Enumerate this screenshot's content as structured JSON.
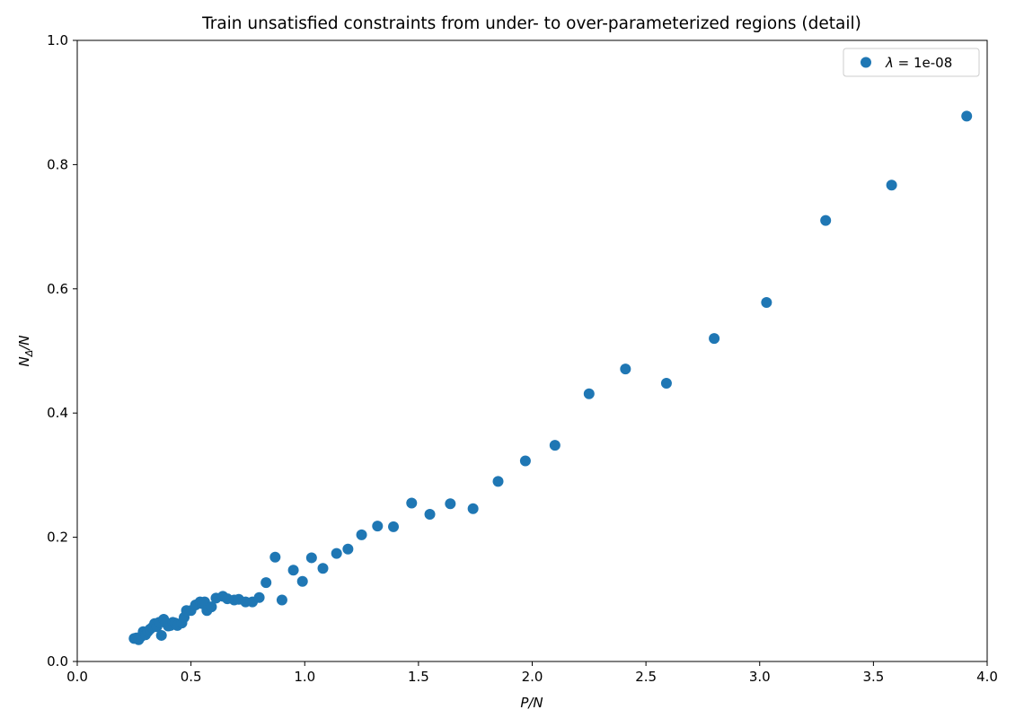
{
  "chart_data": {
    "type": "scatter",
    "title": "Train unsatisfied constraints from under- to over-parameterized regions (detail)",
    "xlabel": "P/N",
    "ylabel": "NΔ/N",
    "ylabel_parts": {
      "main": "N",
      "sub": "Δ",
      "tail": "/N"
    },
    "xlim": [
      0.0,
      4.0
    ],
    "ylim": [
      0.0,
      1.0
    ],
    "xticks": [
      0.0,
      0.5,
      1.0,
      1.5,
      2.0,
      2.5,
      3.0,
      3.5,
      4.0
    ],
    "yticks": [
      0.0,
      0.2,
      0.4,
      0.6,
      0.8,
      1.0
    ],
    "xtick_labels": [
      "0.0",
      "0.5",
      "1.0",
      "1.5",
      "2.0",
      "2.5",
      "3.0",
      "3.5",
      "4.0"
    ],
    "ytick_labels": [
      "0.0",
      "0.2",
      "0.4",
      "0.6",
      "0.8",
      "1.0"
    ],
    "grid": false,
    "legend_position": "top-right",
    "series": [
      {
        "name": "λ = 1e-08",
        "legend_parts": {
          "symbol": "λ",
          "rest": " = 1e-08"
        },
        "color": "#1f77b4",
        "points": [
          [
            0.25,
            0.037
          ],
          [
            0.26,
            0.038
          ],
          [
            0.27,
            0.035
          ],
          [
            0.28,
            0.04
          ],
          [
            0.29,
            0.048
          ],
          [
            0.3,
            0.043
          ],
          [
            0.31,
            0.048
          ],
          [
            0.32,
            0.052
          ],
          [
            0.33,
            0.055
          ],
          [
            0.34,
            0.061
          ],
          [
            0.35,
            0.056
          ],
          [
            0.36,
            0.063
          ],
          [
            0.37,
            0.042
          ],
          [
            0.38,
            0.068
          ],
          [
            0.39,
            0.062
          ],
          [
            0.4,
            0.057
          ],
          [
            0.41,
            0.058
          ],
          [
            0.42,
            0.063
          ],
          [
            0.43,
            0.062
          ],
          [
            0.44,
            0.058
          ],
          [
            0.46,
            0.062
          ],
          [
            0.47,
            0.071
          ],
          [
            0.48,
            0.082
          ],
          [
            0.5,
            0.082
          ],
          [
            0.52,
            0.091
          ],
          [
            0.54,
            0.096
          ],
          [
            0.55,
            0.093
          ],
          [
            0.56,
            0.096
          ],
          [
            0.57,
            0.082
          ],
          [
            0.59,
            0.088
          ],
          [
            0.61,
            0.102
          ],
          [
            0.64,
            0.105
          ],
          [
            0.66,
            0.101
          ],
          [
            0.69,
            0.099
          ],
          [
            0.71,
            0.1
          ],
          [
            0.74,
            0.096
          ],
          [
            0.77,
            0.096
          ],
          [
            0.8,
            0.103
          ],
          [
            0.83,
            0.127
          ],
          [
            0.87,
            0.168
          ],
          [
            0.9,
            0.099
          ],
          [
            0.95,
            0.147
          ],
          [
            0.99,
            0.129
          ],
          [
            1.03,
            0.167
          ],
          [
            1.08,
            0.15
          ],
          [
            1.14,
            0.174
          ],
          [
            1.19,
            0.181
          ],
          [
            1.25,
            0.204
          ],
          [
            1.32,
            0.218
          ],
          [
            1.39,
            0.217
          ],
          [
            1.47,
            0.255
          ],
          [
            1.55,
            0.237
          ],
          [
            1.64,
            0.254
          ],
          [
            1.74,
            0.246
          ],
          [
            1.85,
            0.29
          ],
          [
            1.97,
            0.323
          ],
          [
            2.1,
            0.348
          ],
          [
            2.25,
            0.431
          ],
          [
            2.41,
            0.471
          ],
          [
            2.59,
            0.448
          ],
          [
            2.8,
            0.52
          ],
          [
            3.03,
            0.578
          ],
          [
            3.29,
            0.71
          ],
          [
            3.58,
            0.767
          ],
          [
            3.91,
            0.878
          ]
        ]
      }
    ]
  }
}
